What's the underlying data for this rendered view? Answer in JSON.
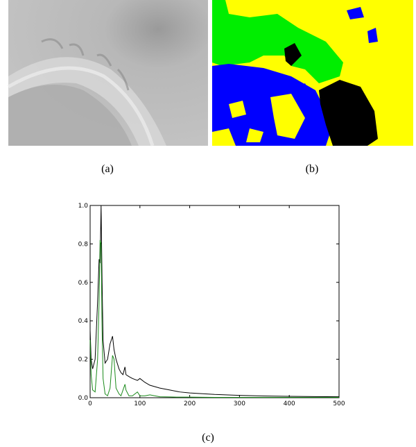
{
  "panels": {
    "a": {
      "caption": "(a)"
    },
    "b": {
      "caption": "(b)"
    },
    "c": {
      "caption": "(c)"
    }
  },
  "chart_data": {
    "type": "line",
    "x": [
      0,
      2,
      5,
      10,
      15,
      18,
      20,
      22,
      24,
      26,
      30,
      35,
      40,
      45,
      48,
      52,
      58,
      62,
      66,
      70,
      72,
      78,
      85,
      95,
      100,
      110,
      120,
      140,
      160,
      180,
      200,
      250,
      300,
      350,
      400,
      450,
      500
    ],
    "series": [
      {
        "color": "#000000",
        "values": [
          0.35,
          0.2,
          0.15,
          0.2,
          0.5,
          0.72,
          0.7,
          1.0,
          0.6,
          0.3,
          0.18,
          0.2,
          0.28,
          0.32,
          0.25,
          0.2,
          0.15,
          0.13,
          0.12,
          0.16,
          0.12,
          0.11,
          0.1,
          0.09,
          0.1,
          0.08,
          0.065,
          0.05,
          0.04,
          0.03,
          0.025,
          0.017,
          0.012,
          0.009,
          0.007,
          0.006,
          0.005
        ]
      },
      {
        "color": "#1a8a1a",
        "values": [
          0.3,
          0.12,
          0.04,
          0.03,
          0.2,
          0.5,
          0.82,
          0.8,
          0.35,
          0.1,
          0.02,
          0.01,
          0.05,
          0.22,
          0.2,
          0.05,
          0.02,
          0.01,
          0.04,
          0.07,
          0.04,
          0.01,
          0.01,
          0.03,
          0.01,
          0.01,
          0.015,
          0.005,
          0.004,
          0.003,
          0.003,
          0.002,
          0.002,
          0.002,
          0.002,
          0.002,
          0.002
        ]
      }
    ],
    "xlim": [
      0,
      500
    ],
    "xticks": [
      0,
      100,
      200,
      300,
      400,
      500
    ],
    "ylim": [
      0,
      1
    ],
    "yticks": [
      {
        "value": 0,
        "label": "0.0"
      },
      0.2,
      0.4,
      0.6,
      0.8,
      {
        "value": 1,
        "label": "1.0"
      }
    ]
  }
}
